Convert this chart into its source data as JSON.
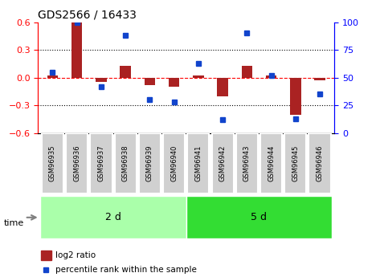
{
  "title": "GDS2566 / 16433",
  "samples": [
    "GSM96935",
    "GSM96936",
    "GSM96937",
    "GSM96938",
    "GSM96939",
    "GSM96940",
    "GSM96941",
    "GSM96942",
    "GSM96943",
    "GSM96944",
    "GSM96945",
    "GSM96946"
  ],
  "log2_ratio": [
    0.02,
    0.6,
    -0.05,
    0.13,
    -0.08,
    -0.1,
    0.02,
    -0.2,
    0.13,
    0.02,
    -0.4,
    -0.03
  ],
  "percentile_rank": [
    55,
    100,
    42,
    88,
    30,
    28,
    63,
    12,
    90,
    52,
    13,
    35
  ],
  "bar_color": "#aa2222",
  "dot_color": "#1144cc",
  "group1_label": "2 d",
  "group2_label": "5 d",
  "group1_count": 6,
  "group2_count": 6,
  "group1_color": "#aaffaa",
  "group2_color": "#33dd33",
  "time_label": "time",
  "legend1": "log2 ratio",
  "legend2": "percentile rank within the sample",
  "ylim_left": [
    -0.6,
    0.6
  ],
  "ylim_right": [
    0,
    100
  ],
  "yticks_left": [
    -0.6,
    -0.3,
    0.0,
    0.3,
    0.6
  ],
  "yticks_right": [
    0,
    25,
    50,
    75,
    100
  ],
  "hline_dotted": [
    0.3,
    -0.3
  ],
  "hline_dashed": 0.0
}
